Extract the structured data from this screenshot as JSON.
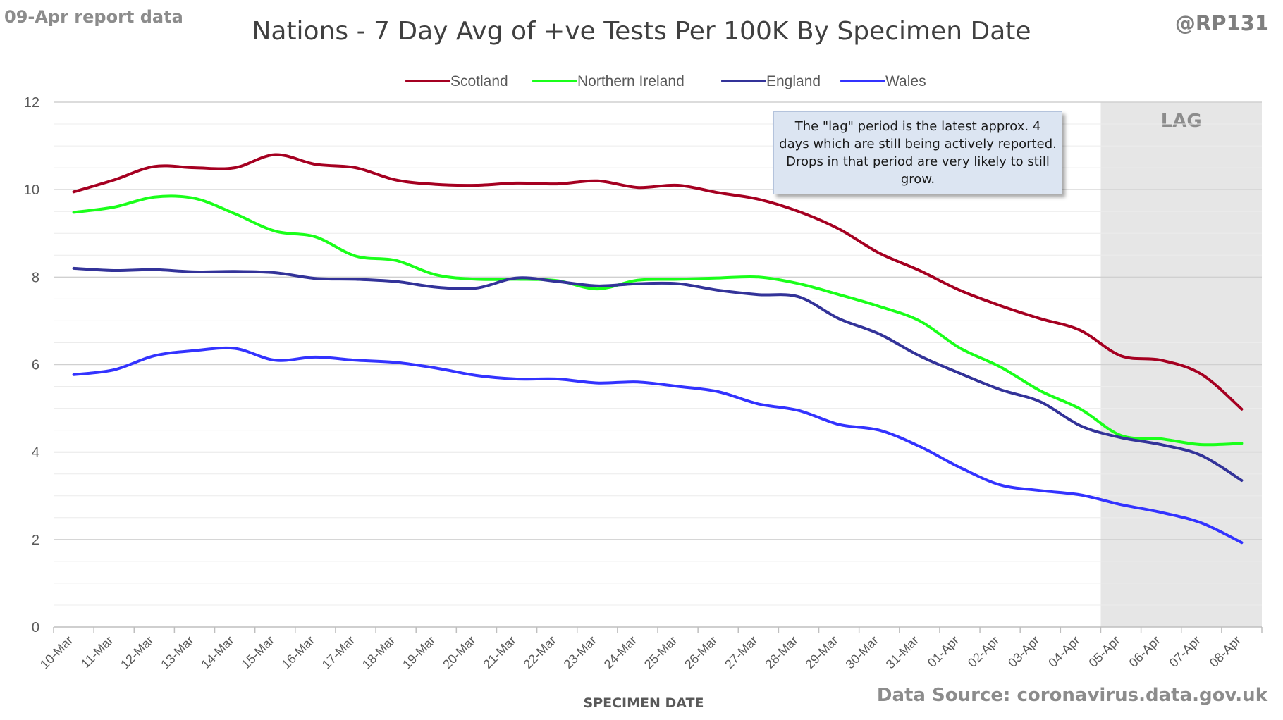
{
  "report_label": "09-Apr report data",
  "handle": "@RP131",
  "source": "Data Source: coronavirus.data.gov.uk",
  "annotation": "The \"lag\" period is the latest approx. 4 days which are still being actively reported. Drops in that period are very likely to still grow.",
  "chart_data": {
    "type": "line",
    "title": "Nations - 7 Day Avg of +ve Tests Per 100K By Specimen Date",
    "xlabel": "SPECIMEN DATE",
    "ylabel": "",
    "ylim": [
      0,
      12
    ],
    "yticks": [
      0,
      2,
      4,
      6,
      8,
      10,
      12
    ],
    "grid": true,
    "legend_position": "top-center",
    "lag_label": "LAG",
    "lag_start": "05-Apr",
    "lag_end": "08-Apr",
    "categories": [
      "10-Mar",
      "11-Mar",
      "12-Mar",
      "13-Mar",
      "14-Mar",
      "15-Mar",
      "16-Mar",
      "17-Mar",
      "18-Mar",
      "19-Mar",
      "20-Mar",
      "21-Mar",
      "22-Mar",
      "23-Mar",
      "24-Mar",
      "25-Mar",
      "26-Mar",
      "27-Mar",
      "28-Mar",
      "29-Mar",
      "30-Mar",
      "31-Mar",
      "01-Apr",
      "02-Apr",
      "03-Apr",
      "04-Apr",
      "05-Apr",
      "06-Apr",
      "07-Apr",
      "08-Apr"
    ],
    "series": [
      {
        "name": "Scotland",
        "color": "#a50021",
        "values": [
          9.95,
          10.22,
          10.53,
          10.5,
          10.5,
          10.8,
          10.58,
          10.5,
          10.22,
          10.12,
          10.1,
          10.15,
          10.13,
          10.2,
          10.05,
          10.1,
          9.93,
          9.78,
          9.5,
          9.1,
          8.55,
          8.15,
          7.7,
          7.35,
          7.05,
          6.78,
          6.2,
          6.1,
          5.78,
          4.98
        ]
      },
      {
        "name": "Northern Ireland",
        "color": "#1aff1a",
        "values": [
          9.48,
          9.6,
          9.83,
          9.8,
          9.45,
          9.05,
          8.92,
          8.48,
          8.38,
          8.05,
          7.95,
          7.95,
          7.92,
          7.73,
          7.93,
          7.95,
          7.98,
          8.0,
          7.85,
          7.6,
          7.33,
          7.0,
          6.38,
          5.95,
          5.4,
          4.98,
          4.38,
          4.3,
          4.17,
          4.2
        ]
      },
      {
        "name": "England",
        "color": "#333399",
        "values": [
          8.2,
          8.15,
          8.17,
          8.12,
          8.13,
          8.1,
          7.97,
          7.95,
          7.9,
          7.77,
          7.75,
          7.98,
          7.9,
          7.8,
          7.85,
          7.85,
          7.7,
          7.6,
          7.55,
          7.05,
          6.7,
          6.2,
          5.8,
          5.43,
          5.15,
          4.6,
          4.33,
          4.17,
          3.92,
          3.35
        ]
      },
      {
        "name": "Wales",
        "color": "#3333ff",
        "values": [
          5.77,
          5.88,
          6.2,
          6.32,
          6.37,
          6.1,
          6.17,
          6.1,
          6.05,
          5.92,
          5.75,
          5.67,
          5.67,
          5.58,
          5.6,
          5.5,
          5.38,
          5.1,
          4.95,
          4.63,
          4.5,
          4.13,
          3.65,
          3.25,
          3.12,
          3.02,
          2.8,
          2.62,
          2.38,
          1.93
        ]
      }
    ]
  }
}
